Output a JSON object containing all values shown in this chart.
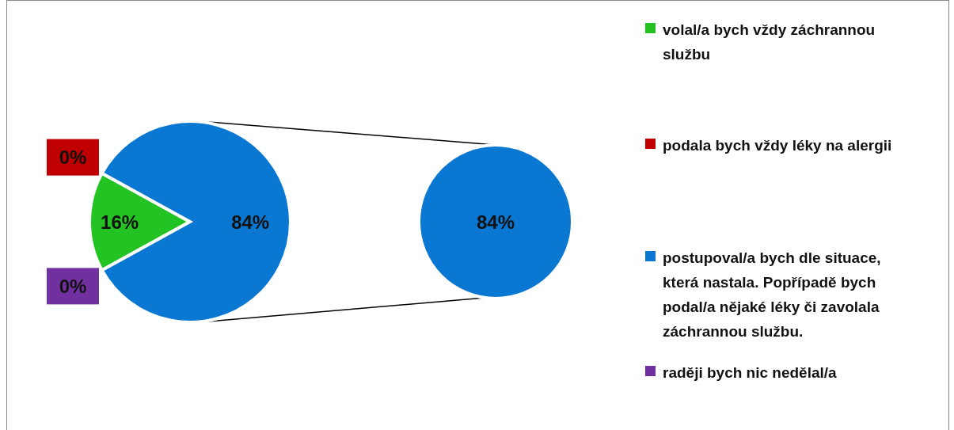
{
  "chart_data": [
    {
      "type": "pie",
      "categories": [
        "volal/a bych vždy záchrannou službu",
        "podala bych vždy léky na alergii",
        "postupoval/a bych dle situace, která nastala. Popřípadě bych podal/a nějaké léky či zavolala záchrannou službu.",
        "raději bych nic nedělal/a"
      ],
      "values": [
        16,
        0,
        84,
        0
      ],
      "colors": [
        "#22c322",
        "#c00000",
        "#0a78d2",
        "#7030a0"
      ],
      "value_labels": [
        "16%",
        "0%",
        "84%",
        "0%"
      ],
      "legend": "right"
    },
    {
      "type": "pie",
      "categories": [
        null
      ],
      "values": [
        84
      ],
      "colors": [
        "#0a78d2"
      ],
      "value_labels": [
        "84%"
      ]
    }
  ]
}
